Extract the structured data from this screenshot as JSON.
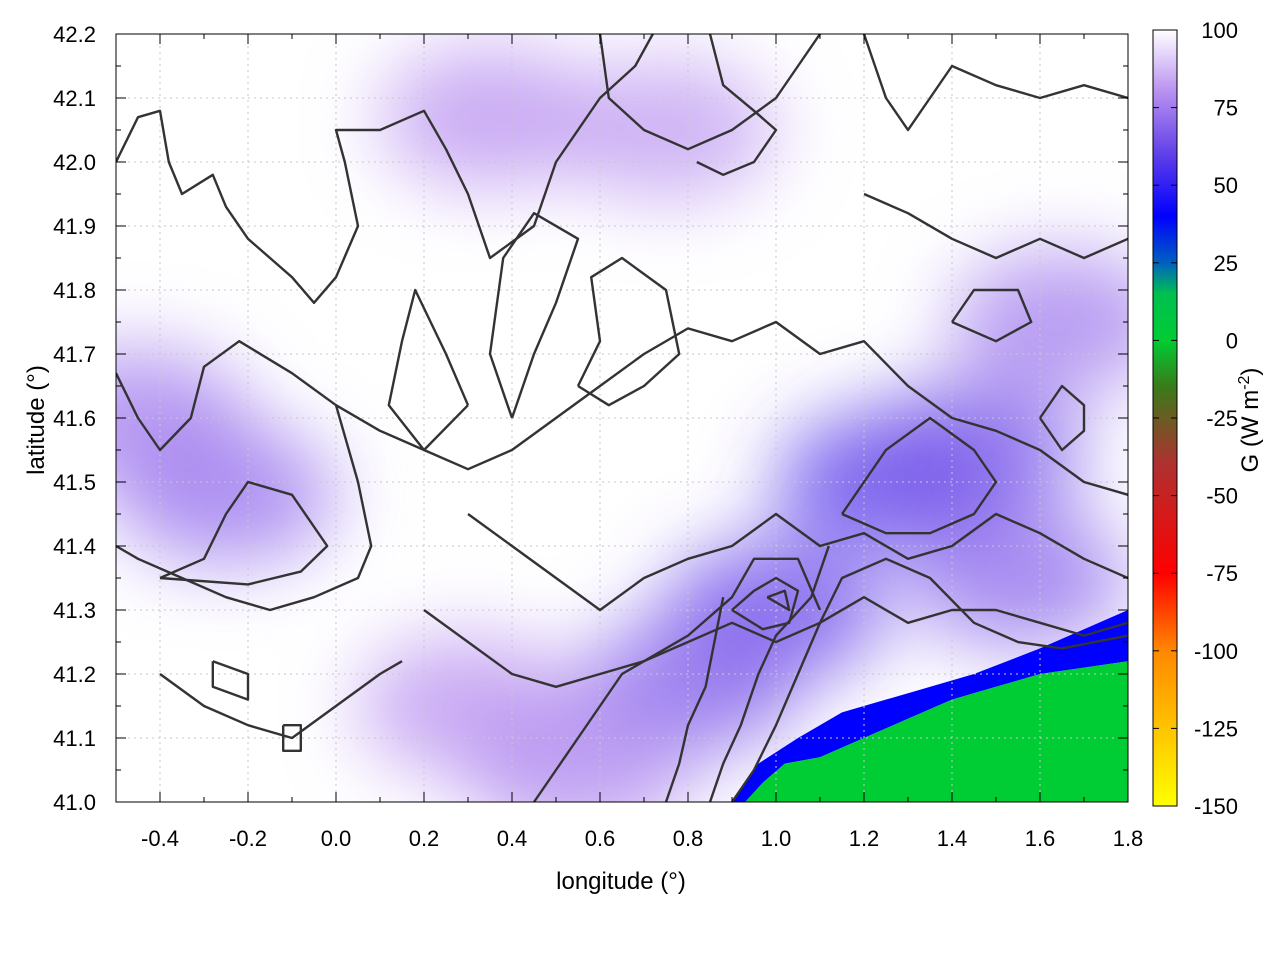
{
  "chart_data": {
    "type": "heatmap",
    "title": "",
    "xlabel": "longitude (°)",
    "ylabel": "latitude (°)",
    "colorbar_label": "G (W m",
    "colorbar_label_sup": "-2",
    "colorbar_label_end": ")",
    "xlim": [
      -0.5,
      1.8
    ],
    "ylim": [
      41.0,
      42.2
    ],
    "xticks": [
      -0.4,
      -0.2,
      0.0,
      0.2,
      0.4,
      0.6,
      0.8,
      1.0,
      1.2,
      1.4,
      1.6,
      1.8
    ],
    "xtick_labels": [
      "-0.4",
      "-0.2",
      "0.0",
      "0.2",
      "0.4",
      "0.6",
      "0.8",
      "1.0",
      "1.2",
      "1.4",
      "1.6",
      "1.8"
    ],
    "yticks": [
      41.0,
      41.1,
      41.2,
      41.3,
      41.4,
      41.5,
      41.6,
      41.7,
      41.8,
      41.9,
      42.0,
      42.1,
      42.2
    ],
    "ytick_labels": [
      "41.0",
      "41.1",
      "41.2",
      "41.3",
      "41.4",
      "41.5",
      "41.6",
      "41.7",
      "41.8",
      "41.9",
      "42.0",
      "42.1",
      "42.2"
    ],
    "colorbar_range": [
      -150,
      100
    ],
    "colorbar_ticks": [
      100,
      75,
      50,
      25,
      0,
      -25,
      -50,
      -75,
      -100,
      -125,
      -150
    ],
    "colorbar_tick_labels": [
      "100",
      "75",
      "50",
      "25",
      "0",
      "-25",
      "-50",
      "-75",
      "-100",
      "-125",
      "-150"
    ],
    "colormap": [
      {
        "v": -150,
        "color": "#ffff00"
      },
      {
        "v": -100,
        "color": "#ff8800"
      },
      {
        "v": -75,
        "color": "#ff0000"
      },
      {
        "v": -40,
        "color": "#b03030"
      },
      {
        "v": -15,
        "color": "#3a7a1a"
      },
      {
        "v": 0,
        "color": "#00cc33"
      },
      {
        "v": 15,
        "color": "#00c050"
      },
      {
        "v": 25,
        "color": "#0060c0"
      },
      {
        "v": 40,
        "color": "#0000ff"
      },
      {
        "v": 60,
        "color": "#6040e8"
      },
      {
        "v": 80,
        "color": "#b890f0"
      },
      {
        "v": 100,
        "color": "#ffffff"
      }
    ],
    "grid": true,
    "field_regions": [
      {
        "name": "sea",
        "value": 0,
        "boundary_lon_lat": [
          [
            0.93,
            41.0
          ],
          [
            0.97,
            41.03
          ],
          [
            1.02,
            41.06
          ],
          [
            1.1,
            41.07
          ],
          [
            1.2,
            41.1
          ],
          [
            1.3,
            41.13
          ],
          [
            1.4,
            41.16
          ],
          [
            1.5,
            41.18
          ],
          [
            1.6,
            41.2
          ],
          [
            1.7,
            41.21
          ],
          [
            1.8,
            41.22
          ],
          [
            1.8,
            41.0
          ]
        ]
      },
      {
        "name": "coastal strip",
        "value": 40,
        "boundary_lon_lat": [
          [
            0.9,
            41.0
          ],
          [
            0.96,
            41.06
          ],
          [
            1.05,
            41.1
          ],
          [
            1.15,
            41.14
          ],
          [
            1.3,
            41.17
          ],
          [
            1.45,
            41.2
          ],
          [
            1.6,
            41.24
          ],
          [
            1.7,
            41.27
          ],
          [
            1.8,
            41.3
          ],
          [
            1.8,
            41.22
          ],
          [
            1.7,
            41.21
          ],
          [
            1.6,
            41.2
          ],
          [
            1.5,
            41.18
          ],
          [
            1.4,
            41.16
          ],
          [
            1.3,
            41.13
          ],
          [
            1.2,
            41.1
          ],
          [
            1.1,
            41.07
          ],
          [
            1.02,
            41.06
          ],
          [
            0.97,
            41.03
          ],
          [
            0.93,
            41.0
          ]
        ]
      }
    ],
    "field_blobs": [
      {
        "lon": -0.25,
        "lat": 41.48,
        "value": 72
      },
      {
        "lon": -0.45,
        "lat": 41.6,
        "value": 75
      },
      {
        "lon": 1.25,
        "lat": 41.5,
        "value": 58
      },
      {
        "lon": 1.45,
        "lat": 41.55,
        "value": 66
      },
      {
        "lon": 1.0,
        "lat": 41.3,
        "value": 62
      },
      {
        "lon": 0.8,
        "lat": 41.18,
        "value": 68
      },
      {
        "lon": 1.55,
        "lat": 41.35,
        "value": 70
      },
      {
        "lon": 1.65,
        "lat": 41.75,
        "value": 75
      },
      {
        "lon": 0.35,
        "lat": 42.07,
        "value": 80
      },
      {
        "lon": 0.75,
        "lat": 42.05,
        "value": 82
      },
      {
        "lon": 0.3,
        "lat": 41.15,
        "value": 80
      },
      {
        "lon": 0.55,
        "lat": 41.05,
        "value": 78
      }
    ],
    "contours": [
      [
        [
          -0.5,
          41.67
        ],
        [
          -0.45,
          41.6
        ],
        [
          -0.4,
          41.55
        ],
        [
          -0.33,
          41.6
        ],
        [
          -0.3,
          41.68
        ],
        [
          -0.22,
          41.72
        ],
        [
          -0.1,
          41.67
        ],
        [
          0.0,
          41.62
        ],
        [
          0.05,
          41.5
        ],
        [
          0.08,
          41.4
        ],
        [
          0.05,
          41.35
        ],
        [
          -0.05,
          41.32
        ],
        [
          -0.15,
          41.3
        ],
        [
          -0.25,
          41.32
        ],
        [
          -0.35,
          41.35
        ],
        [
          -0.45,
          41.38
        ],
        [
          -0.5,
          41.4
        ]
      ],
      [
        [
          -0.4,
          41.35
        ],
        [
          -0.3,
          41.38
        ],
        [
          -0.25,
          41.45
        ],
        [
          -0.2,
          41.5
        ],
        [
          -0.1,
          41.48
        ],
        [
          -0.02,
          41.4
        ],
        [
          -0.08,
          41.36
        ],
        [
          -0.2,
          41.34
        ],
        [
          -0.4,
          41.35
        ]
      ],
      [
        [
          -0.5,
          42.0
        ],
        [
          -0.45,
          42.07
        ],
        [
          -0.4,
          42.08
        ],
        [
          -0.38,
          42.0
        ],
        [
          -0.35,
          41.95
        ],
        [
          -0.28,
          41.98
        ],
        [
          -0.25,
          41.93
        ],
        [
          -0.2,
          41.88
        ],
        [
          -0.15,
          41.85
        ],
        [
          -0.1,
          41.82
        ],
        [
          -0.05,
          41.78
        ],
        [
          0.0,
          41.82
        ],
        [
          0.05,
          41.9
        ],
        [
          0.02,
          42.0
        ],
        [
          0.0,
          42.05
        ],
        [
          0.1,
          42.05
        ],
        [
          0.2,
          42.08
        ],
        [
          0.25,
          42.02
        ],
        [
          0.3,
          41.95
        ],
        [
          0.35,
          41.85
        ],
        [
          0.45,
          41.9
        ],
        [
          0.5,
          42.0
        ],
        [
          0.6,
          42.1
        ],
        [
          0.68,
          42.15
        ],
        [
          0.72,
          42.2
        ]
      ],
      [
        [
          0.0,
          41.62
        ],
        [
          0.1,
          41.58
        ],
        [
          0.2,
          41.55
        ],
        [
          0.3,
          41.52
        ],
        [
          0.4,
          41.55
        ],
        [
          0.5,
          41.6
        ],
        [
          0.6,
          41.65
        ],
        [
          0.7,
          41.7
        ],
        [
          0.8,
          41.74
        ],
        [
          0.9,
          41.72
        ],
        [
          1.0,
          41.75
        ],
        [
          1.1,
          41.7
        ],
        [
          1.2,
          41.72
        ],
        [
          1.3,
          41.65
        ],
        [
          1.4,
          41.6
        ],
        [
          1.5,
          41.58
        ],
        [
          1.6,
          41.55
        ],
        [
          1.7,
          41.5
        ],
        [
          1.8,
          41.48
        ]
      ],
      [
        [
          0.3,
          41.45
        ],
        [
          0.4,
          41.4
        ],
        [
          0.5,
          41.35
        ],
        [
          0.6,
          41.3
        ],
        [
          0.7,
          41.35
        ],
        [
          0.8,
          41.38
        ],
        [
          0.9,
          41.4
        ],
        [
          1.0,
          41.45
        ],
        [
          1.1,
          41.4
        ],
        [
          1.2,
          41.42
        ],
        [
          1.3,
          41.38
        ],
        [
          1.4,
          41.4
        ],
        [
          1.5,
          41.45
        ],
        [
          1.6,
          41.42
        ],
        [
          1.7,
          41.38
        ],
        [
          1.8,
          41.35
        ]
      ],
      [
        [
          0.2,
          41.3
        ],
        [
          0.3,
          41.25
        ],
        [
          0.4,
          41.2
        ],
        [
          0.5,
          41.18
        ],
        [
          0.6,
          41.2
        ],
        [
          0.7,
          41.22
        ],
        [
          0.8,
          41.25
        ],
        [
          0.9,
          41.28
        ],
        [
          1.0,
          41.25
        ],
        [
          1.1,
          41.28
        ],
        [
          1.2,
          41.32
        ],
        [
          1.3,
          41.28
        ],
        [
          1.4,
          41.3
        ],
        [
          1.5,
          41.3
        ],
        [
          1.6,
          41.28
        ],
        [
          1.7,
          41.26
        ],
        [
          1.8,
          41.28
        ]
      ],
      [
        [
          0.45,
          41.0
        ],
        [
          0.5,
          41.05
        ],
        [
          0.55,
          41.1
        ],
        [
          0.6,
          41.15
        ],
        [
          0.65,
          41.2
        ],
        [
          0.7,
          41.22
        ],
        [
          0.8,
          41.26
        ],
        [
          0.9,
          41.32
        ],
        [
          0.95,
          41.38
        ],
        [
          1.05,
          41.38
        ],
        [
          1.1,
          41.3
        ]
      ],
      [
        [
          0.9,
          41.0
        ],
        [
          0.95,
          41.05
        ],
        [
          1.0,
          41.12
        ],
        [
          1.05,
          41.2
        ],
        [
          1.1,
          41.28
        ],
        [
          1.15,
          41.35
        ],
        [
          1.25,
          41.38
        ],
        [
          1.35,
          41.35
        ],
        [
          1.45,
          41.28
        ],
        [
          1.55,
          41.25
        ],
        [
          1.65,
          41.24
        ],
        [
          1.8,
          41.26
        ]
      ],
      [
        [
          0.85,
          41.0
        ],
        [
          0.88,
          41.06
        ],
        [
          0.92,
          41.12
        ],
        [
          0.96,
          41.2
        ],
        [
          1.0,
          41.26
        ],
        [
          1.08,
          41.32
        ],
        [
          1.12,
          41.4
        ]
      ],
      [
        [
          0.75,
          41.0
        ],
        [
          0.78,
          41.06
        ],
        [
          0.8,
          41.12
        ],
        [
          0.84,
          41.18
        ],
        [
          0.86,
          41.25
        ],
        [
          0.88,
          41.32
        ]
      ],
      [
        [
          0.9,
          41.3
        ],
        [
          0.95,
          41.33
        ],
        [
          1.0,
          41.35
        ],
        [
          1.05,
          41.33
        ],
        [
          1.03,
          41.28
        ],
        [
          0.97,
          41.27
        ],
        [
          0.9,
          41.3
        ]
      ],
      [
        [
          0.98,
          41.32
        ],
        [
          1.02,
          41.33
        ],
        [
          1.03,
          41.3
        ],
        [
          0.98,
          41.32
        ]
      ],
      [
        [
          1.15,
          41.45
        ],
        [
          1.2,
          41.5
        ],
        [
          1.25,
          41.55
        ],
        [
          1.35,
          41.6
        ],
        [
          1.45,
          41.55
        ],
        [
          1.5,
          41.5
        ],
        [
          1.45,
          41.45
        ],
        [
          1.35,
          41.42
        ],
        [
          1.25,
          41.42
        ],
        [
          1.15,
          41.45
        ]
      ],
      [
        [
          -0.4,
          41.2
        ],
        [
          -0.3,
          41.15
        ],
        [
          -0.2,
          41.12
        ],
        [
          -0.1,
          41.1
        ],
        [
          0.0,
          41.15
        ],
        [
          0.1,
          41.2
        ],
        [
          0.15,
          41.22
        ]
      ],
      [
        [
          -0.28,
          41.22
        ],
        [
          -0.2,
          41.2
        ],
        [
          -0.2,
          41.16
        ],
        [
          -0.28,
          41.18
        ],
        [
          -0.28,
          41.22
        ]
      ],
      [
        [
          -0.12,
          41.12
        ],
        [
          -0.08,
          41.12
        ],
        [
          -0.08,
          41.08
        ],
        [
          -0.12,
          41.08
        ],
        [
          -0.12,
          41.12
        ]
      ],
      [
        [
          0.3,
          41.62
        ],
        [
          0.2,
          41.55
        ],
        [
          0.12,
          41.62
        ],
        [
          0.15,
          41.72
        ],
        [
          0.18,
          41.8
        ],
        [
          0.25,
          41.7
        ],
        [
          0.3,
          41.62
        ]
      ],
      [
        [
          0.4,
          41.6
        ],
        [
          0.35,
          41.7
        ],
        [
          0.38,
          41.85
        ],
        [
          0.45,
          41.92
        ],
        [
          0.55,
          41.88
        ],
        [
          0.5,
          41.78
        ],
        [
          0.45,
          41.7
        ],
        [
          0.4,
          41.6
        ]
      ],
      [
        [
          0.55,
          41.65
        ],
        [
          0.6,
          41.72
        ],
        [
          0.58,
          41.82
        ],
        [
          0.65,
          41.85
        ],
        [
          0.75,
          41.8
        ],
        [
          0.78,
          41.7
        ],
        [
          0.7,
          41.65
        ],
        [
          0.62,
          41.62
        ],
        [
          0.55,
          41.65
        ]
      ],
      [
        [
          0.6,
          42.2
        ],
        [
          0.62,
          42.1
        ],
        [
          0.7,
          42.05
        ],
        [
          0.8,
          42.02
        ],
        [
          0.9,
          42.05
        ],
        [
          1.0,
          42.1
        ],
        [
          1.05,
          42.15
        ],
        [
          1.1,
          42.2
        ]
      ],
      [
        [
          0.85,
          42.2
        ],
        [
          0.88,
          42.12
        ],
        [
          0.95,
          42.08
        ],
        [
          1.0,
          42.05
        ],
        [
          0.95,
          42.0
        ],
        [
          0.88,
          41.98
        ],
        [
          0.82,
          42.0
        ]
      ],
      [
        [
          1.2,
          42.2
        ],
        [
          1.25,
          42.1
        ],
        [
          1.3,
          42.05
        ],
        [
          1.35,
          42.1
        ],
        [
          1.4,
          42.15
        ],
        [
          1.5,
          42.12
        ],
        [
          1.6,
          42.1
        ],
        [
          1.7,
          42.12
        ],
        [
          1.8,
          42.1
        ]
      ],
      [
        [
          1.2,
          41.95
        ],
        [
          1.3,
          41.92
        ],
        [
          1.4,
          41.88
        ],
        [
          1.5,
          41.85
        ],
        [
          1.6,
          41.88
        ],
        [
          1.7,
          41.85
        ],
        [
          1.8,
          41.88
        ]
      ],
      [
        [
          1.6,
          41.6
        ],
        [
          1.65,
          41.55
        ],
        [
          1.7,
          41.58
        ],
        [
          1.7,
          41.62
        ],
        [
          1.65,
          41.65
        ],
        [
          1.6,
          41.6
        ]
      ],
      [
        [
          1.4,
          41.75
        ],
        [
          1.5,
          41.72
        ],
        [
          1.58,
          41.75
        ],
        [
          1.55,
          41.8
        ],
        [
          1.45,
          41.8
        ],
        [
          1.4,
          41.75
        ]
      ]
    ]
  }
}
